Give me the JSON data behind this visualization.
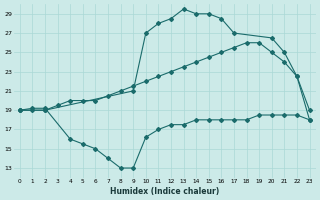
{
  "xlabel": "Humidex (Indice chaleur)",
  "bg_color": "#cceae8",
  "line_color": "#1a6b6b",
  "grid_color": "#aad8d6",
  "xlim": [
    -0.5,
    23.5
  ],
  "ylim": [
    12,
    30
  ],
  "xticks": [
    0,
    1,
    2,
    3,
    4,
    5,
    6,
    7,
    8,
    9,
    10,
    11,
    12,
    13,
    14,
    15,
    16,
    17,
    18,
    19,
    20,
    21,
    22,
    23
  ],
  "yticks": [
    13,
    15,
    17,
    19,
    21,
    23,
    25,
    27,
    29
  ],
  "line1_x": [
    0,
    1,
    2,
    4,
    5,
    6,
    7,
    8,
    9,
    10,
    11,
    12,
    13,
    14,
    15,
    16,
    17,
    18,
    19,
    20,
    21,
    22,
    23
  ],
  "line1_y": [
    19,
    19.2,
    19.2,
    16,
    15.5,
    15,
    14,
    13,
    13,
    16.2,
    17,
    17.5,
    17.5,
    18,
    18,
    18,
    18,
    18,
    18.5,
    18.5,
    18.5,
    18.5,
    18
  ],
  "line2_x": [
    0,
    1,
    2,
    3,
    4,
    5,
    6,
    7,
    8,
    9,
    10,
    11,
    12,
    13,
    14,
    15,
    16,
    17,
    18,
    19,
    20,
    21,
    22,
    23
  ],
  "line2_y": [
    19,
    19,
    19,
    19.5,
    20,
    20,
    20,
    20.5,
    21,
    21.5,
    22,
    22.5,
    23,
    23.5,
    24,
    24.5,
    25,
    25.5,
    26,
    26,
    25,
    24,
    22.5,
    18
  ],
  "line3_x": [
    0,
    2,
    9,
    10,
    11,
    12,
    13,
    14,
    15,
    16,
    17,
    20,
    21,
    22,
    23
  ],
  "line3_y": [
    19,
    19,
    21,
    27,
    28,
    28.5,
    29.5,
    29,
    29,
    28.5,
    27,
    26.5,
    25,
    22.5,
    19
  ]
}
